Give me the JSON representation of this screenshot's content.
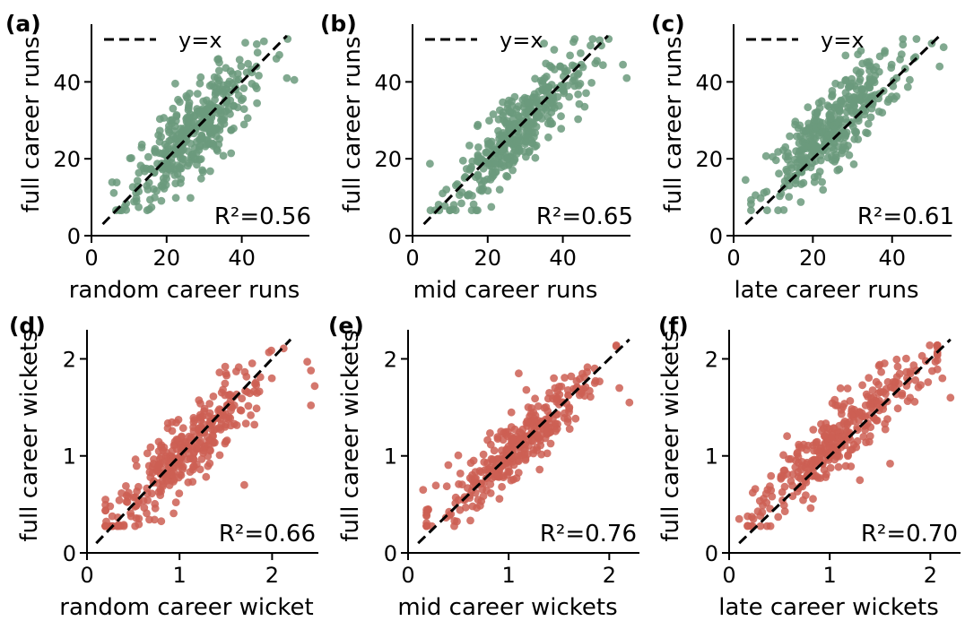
{
  "colors": {
    "runs_points": "#6b9a7c",
    "wickets_points": "#cd5f54",
    "reference_line": "#000000"
  },
  "chart_data": [
    {
      "type": "scatter",
      "panel": "(a)",
      "xlabel": "random career runs",
      "ylabel": "full career runs",
      "xlim": [
        0,
        58
      ],
      "ylim": [
        0,
        55
      ],
      "xticks": [
        0,
        20,
        40
      ],
      "yticks": [
        0,
        20,
        40
      ],
      "reference_line": {
        "label": "y=x",
        "from": [
          3,
          3
        ],
        "to": [
          52,
          52
        ]
      },
      "r2_label": "R²=0.56",
      "r2": 0.56,
      "series": [
        {
          "center": [
            27,
            27
          ],
          "x_std": 8.5,
          "resid_std": 5.6,
          "count": 380,
          "outliers": [
            [
              54,
              40.5
            ],
            [
              50,
              47
            ],
            [
              52,
              41
            ],
            [
              12,
              9
            ],
            [
              15,
              12
            ]
          ]
        }
      ]
    },
    {
      "type": "scatter",
      "panel": "(b)",
      "xlabel": "mid career runs",
      "ylabel": "full career runs",
      "xlim": [
        0,
        58
      ],
      "ylim": [
        0,
        55
      ],
      "xticks": [
        0,
        20,
        40
      ],
      "yticks": [
        0,
        20,
        40
      ],
      "reference_line": {
        "label": "y=x",
        "from": [
          3,
          3
        ],
        "to": [
          52,
          52
        ]
      },
      "r2_label": "R²=0.65",
      "r2": 0.65,
      "series": [
        {
          "center": [
            28,
            27
          ],
          "x_std": 8.5,
          "resid_std": 5.0,
          "count": 380,
          "outliers": [
            [
              56,
              44.5
            ],
            [
              57,
              41
            ],
            [
              8,
              11
            ],
            [
              9,
              12
            ],
            [
              35,
              50
            ]
          ]
        }
      ]
    },
    {
      "type": "scatter",
      "panel": "(c)",
      "xlabel": "late career runs",
      "ylabel": "full career runs",
      "xlim": [
        0,
        55
      ],
      "ylim": [
        0,
        55
      ],
      "xticks": [
        0,
        20,
        40
      ],
      "yticks": [
        0,
        20,
        40
      ],
      "reference_line": {
        "label": "y=x",
        "from": [
          3,
          3
        ],
        "to": [
          52,
          52
        ]
      },
      "r2_label": "R²=0.61",
      "r2": 0.61,
      "series": [
        {
          "center": [
            25,
            28
          ],
          "x_std": 8.5,
          "resid_std": 5.3,
          "count": 380,
          "outliers": [
            [
              3,
              14.5
            ],
            [
              53,
              49
            ],
            [
              52,
              44
            ],
            [
              50,
              50
            ],
            [
              12,
              11
            ]
          ]
        }
      ]
    },
    {
      "type": "scatter",
      "panel": "(d)",
      "xlabel": "random career wicket",
      "ylabel": "full career wickets",
      "xlim": [
        0,
        2.5
      ],
      "ylim": [
        0,
        2.3
      ],
      "xticks": [
        0,
        1,
        2
      ],
      "yticks": [
        0,
        1,
        2
      ],
      "reference_line": {
        "from": [
          0.1,
          0.1
        ],
        "to": [
          2.2,
          2.2
        ]
      },
      "r2_label": "R²=0.66",
      "r2": 0.66,
      "series": [
        {
          "center": [
            1.1,
            1.1
          ],
          "x_std": 0.42,
          "resid_std": 0.19,
          "count": 330,
          "outliers": [
            [
              2.38,
              1.97
            ],
            [
              2.42,
              1.88
            ],
            [
              2.46,
              1.72
            ],
            [
              2.42,
              1.52
            ],
            [
              1.7,
              0.7
            ],
            [
              0.25,
              0.48
            ],
            [
              0.2,
              0.55
            ]
          ]
        }
      ]
    },
    {
      "type": "scatter",
      "panel": "(e)",
      "xlabel": "mid career wickets",
      "ylabel": "full career wickets",
      "xlim": [
        0,
        2.3
      ],
      "ylim": [
        0,
        2.3
      ],
      "xticks": [
        0,
        1,
        2
      ],
      "yticks": [
        0,
        1,
        2
      ],
      "reference_line": {
        "from": [
          0.1,
          0.1
        ],
        "to": [
          2.2,
          2.2
        ]
      },
      "r2_label": "R²=0.76",
      "r2": 0.76,
      "series": [
        {
          "center": [
            1.1,
            1.1
          ],
          "x_std": 0.42,
          "resid_std": 0.15,
          "count": 330,
          "outliers": [
            [
              2.2,
              1.55
            ],
            [
              2.1,
              1.7
            ],
            [
              0.15,
              0.65
            ],
            [
              0.2,
              0.45
            ],
            [
              1.1,
              1.85
            ]
          ]
        }
      ]
    },
    {
      "type": "scatter",
      "panel": "(f)",
      "xlabel": "late career wickets",
      "ylabel": "full career wickets",
      "xlim": [
        0,
        2.3
      ],
      "ylim": [
        0,
        2.3
      ],
      "xticks": [
        0,
        1,
        2
      ],
      "yticks": [
        0,
        1,
        2
      ],
      "reference_line": {
        "from": [
          0.1,
          0.1
        ],
        "to": [
          2.2,
          2.2
        ]
      },
      "r2_label": "R²=0.70",
      "r2": 0.7,
      "series": [
        {
          "center": [
            1.05,
            1.15
          ],
          "x_std": 0.42,
          "resid_std": 0.17,
          "count": 330,
          "outliers": [
            [
              2.2,
              1.6
            ],
            [
              2.12,
              1.8
            ],
            [
              2.05,
              1.97
            ],
            [
              0.1,
              0.35
            ],
            [
              1.3,
              0.75
            ],
            [
              1.6,
              0.92
            ]
          ]
        }
      ]
    }
  ]
}
